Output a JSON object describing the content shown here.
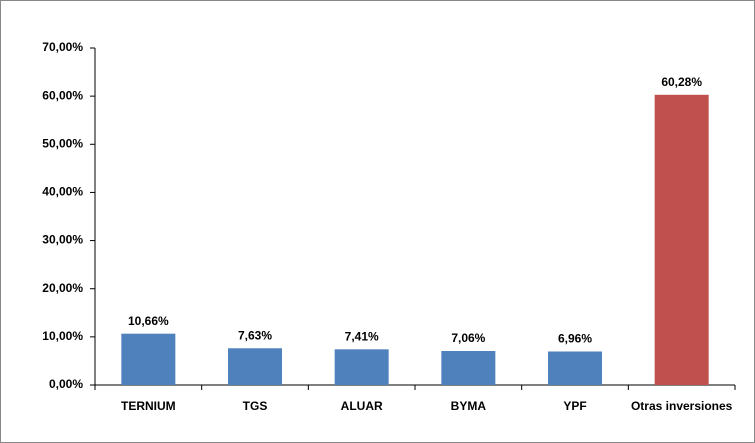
{
  "chart_data": {
    "type": "bar",
    "categories": [
      "TERNIUM",
      "TGS",
      "ALUAR",
      "BYMA",
      "YPF",
      "Otras inversiones"
    ],
    "values": [
      10.66,
      7.63,
      7.41,
      7.06,
      6.96,
      60.28
    ],
    "value_labels": [
      "10,66%",
      "7,63%",
      "7,41%",
      "7,06%",
      "6,96%",
      "60,28%"
    ],
    "colors": [
      "#4f81bd",
      "#4f81bd",
      "#4f81bd",
      "#4f81bd",
      "#4f81bd",
      "#c0504d"
    ],
    "ylim": [
      0,
      70
    ],
    "yticks": [
      {
        "value": 0,
        "label": "0,00%"
      },
      {
        "value": 10,
        "label": "10,00%"
      },
      {
        "value": 20,
        "label": "20,00%"
      },
      {
        "value": 30,
        "label": "30,00%"
      },
      {
        "value": 40,
        "label": "40,00%"
      },
      {
        "value": 50,
        "label": "50,00%"
      },
      {
        "value": 60,
        "label": "60,00%"
      },
      {
        "value": 70,
        "label": "70,00%"
      }
    ],
    "grid": false
  }
}
